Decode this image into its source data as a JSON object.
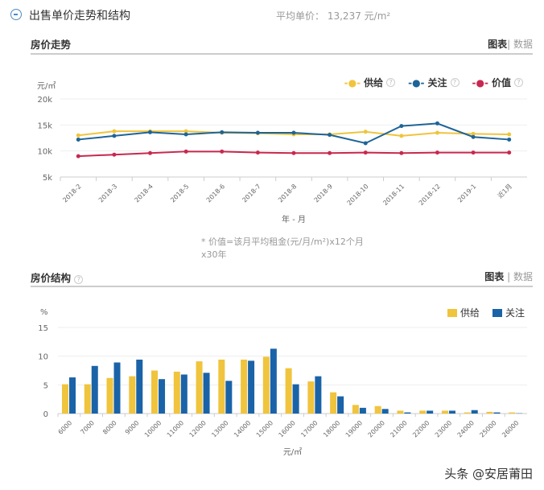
{
  "section": {
    "title": "出售单价走势和结构",
    "avg_label": "平均单价：",
    "avg_value": "13,237 元/m²"
  },
  "trend": {
    "title": "房价走势",
    "view_chart": "图表",
    "view_data": "数据",
    "note": "* 价值=该月平均租金(元/月/m²)x12个月x30年"
  },
  "structure": {
    "title": "房价结构",
    "view_chart": "图表",
    "view_data": "数据"
  },
  "watermark": "头条 @安居莆田",
  "colors": {
    "supply": "#f0c43c",
    "attention": "#1e6497",
    "value": "#c8284f",
    "bar_attention": "#1a63a8"
  },
  "chart_data": [
    {
      "type": "line",
      "ylabel": "元/㎡",
      "xlabel": "年 - 月",
      "ylim": [
        5000,
        20000
      ],
      "yticks": [
        "5k",
        "10k",
        "15k",
        "20k"
      ],
      "grid": true,
      "legend": "top-right",
      "categories": [
        "2018-2",
        "2018-3",
        "2018-4",
        "2018-5",
        "2018-6",
        "2018-7",
        "2018-8",
        "2018-9",
        "2018-10",
        "2018-11",
        "2018-12",
        "2019-1",
        "近1月"
      ],
      "series": [
        {
          "name": "供给",
          "values": [
            13000,
            13800,
            13800,
            13800,
            13500,
            13400,
            13200,
            13200,
            13700,
            12900,
            13500,
            13300,
            13200
          ]
        },
        {
          "name": "关注",
          "values": [
            12200,
            12900,
            13600,
            13200,
            13600,
            13500,
            13500,
            13100,
            11500,
            14800,
            15300,
            12700,
            12200
          ]
        },
        {
          "name": "价值",
          "values": [
            9000,
            9300,
            9600,
            9900,
            9900,
            9700,
            9600,
            9600,
            9700,
            9600,
            9700,
            9700,
            9700
          ]
        }
      ]
    },
    {
      "type": "bar",
      "ylabel": "%",
      "xlabel": "元/㎡",
      "ylim": [
        0,
        15
      ],
      "yticks": [
        "0",
        "5",
        "10",
        "15"
      ],
      "grid": true,
      "legend": "top-right",
      "categories": [
        "6000",
        "7000",
        "8000",
        "9000",
        "10000",
        "11000",
        "12000",
        "13000",
        "14000",
        "15000",
        "16000",
        "17000",
        "18000",
        "19000",
        "20000",
        "21000",
        "22000",
        "23000",
        "24000",
        "25000",
        "26000"
      ],
      "series": [
        {
          "name": "供给",
          "values": [
            5.1,
            5.1,
            6.2,
            6.5,
            7.5,
            7.3,
            9.1,
            9.4,
            9.4,
            9.9,
            7.9,
            5.6,
            3.7,
            1.5,
            1.3,
            0.5,
            0.5,
            0.5,
            0.2,
            0.3,
            0.2
          ]
        },
        {
          "name": "关注",
          "values": [
            6.3,
            8.3,
            8.9,
            9.4,
            6.0,
            6.8,
            7.1,
            5.7,
            9.2,
            11.3,
            5.1,
            6.5,
            3.0,
            1.0,
            0.8,
            0.2,
            0.5,
            0.5,
            0.6,
            0.2,
            0.05
          ]
        }
      ]
    }
  ]
}
